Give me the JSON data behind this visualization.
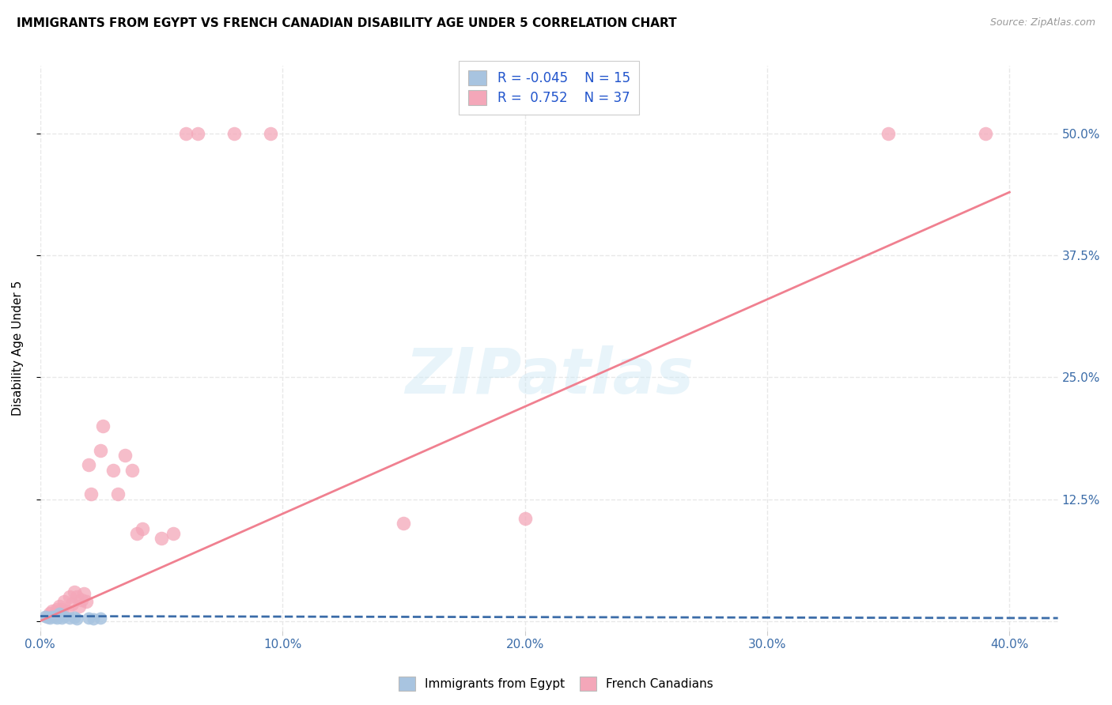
{
  "title": "IMMIGRANTS FROM EGYPT VS FRENCH CANADIAN DISABILITY AGE UNDER 5 CORRELATION CHART",
  "source": "Source: ZipAtlas.com",
  "ylabel": "Disability Age Under 5",
  "legend_egypt_R": "-0.045",
  "legend_egypt_N": "15",
  "legend_french_R": "0.752",
  "legend_french_N": "37",
  "egypt_color": "#a8c4e0",
  "french_color": "#f4a7b9",
  "egypt_line_color": "#3b6ca8",
  "french_line_color": "#f08090",
  "egypt_scatter": [
    [
      0.002,
      0.005
    ],
    [
      0.003,
      0.004
    ],
    [
      0.004,
      0.003
    ],
    [
      0.005,
      0.005
    ],
    [
      0.006,
      0.004
    ],
    [
      0.007,
      0.003
    ],
    [
      0.008,
      0.008
    ],
    [
      0.009,
      0.003
    ],
    [
      0.01,
      0.005
    ],
    [
      0.012,
      0.003
    ],
    [
      0.014,
      0.004
    ],
    [
      0.015,
      0.002
    ],
    [
      0.02,
      0.003
    ],
    [
      0.022,
      0.002
    ],
    [
      0.025,
      0.003
    ]
  ],
  "french_scatter": [
    [
      0.003,
      0.005
    ],
    [
      0.004,
      0.008
    ],
    [
      0.005,
      0.01
    ],
    [
      0.006,
      0.006
    ],
    [
      0.007,
      0.012
    ],
    [
      0.008,
      0.015
    ],
    [
      0.009,
      0.012
    ],
    [
      0.01,
      0.02
    ],
    [
      0.011,
      0.01
    ],
    [
      0.012,
      0.025
    ],
    [
      0.013,
      0.018
    ],
    [
      0.014,
      0.03
    ],
    [
      0.015,
      0.025
    ],
    [
      0.016,
      0.015
    ],
    [
      0.017,
      0.022
    ],
    [
      0.018,
      0.028
    ],
    [
      0.019,
      0.02
    ],
    [
      0.02,
      0.16
    ],
    [
      0.021,
      0.13
    ],
    [
      0.025,
      0.175
    ],
    [
      0.026,
      0.2
    ],
    [
      0.03,
      0.155
    ],
    [
      0.032,
      0.13
    ],
    [
      0.035,
      0.17
    ],
    [
      0.038,
      0.155
    ],
    [
      0.04,
      0.09
    ],
    [
      0.042,
      0.095
    ],
    [
      0.05,
      0.085
    ],
    [
      0.055,
      0.09
    ],
    [
      0.06,
      0.5
    ],
    [
      0.065,
      0.5
    ],
    [
      0.08,
      0.5
    ],
    [
      0.095,
      0.5
    ],
    [
      0.15,
      0.1
    ],
    [
      0.2,
      0.105
    ],
    [
      0.35,
      0.5
    ],
    [
      0.39,
      0.5
    ]
  ],
  "xlim": [
    0.0,
    0.42
  ],
  "ylim": [
    -0.01,
    0.57
  ],
  "xticks": [
    0.0,
    0.1,
    0.2,
    0.3,
    0.4
  ],
  "yticks": [
    0.0,
    0.125,
    0.25,
    0.375,
    0.5
  ],
  "xtick_labels": [
    "0.0%",
    "10.0%",
    "20.0%",
    "30.0%",
    "40.0%"
  ],
  "ytick_labels": [
    "",
    "12.5%",
    "25.0%",
    "37.5%",
    "50.0%"
  ],
  "grid_color": "#e8e8e8",
  "background_color": "#ffffff",
  "french_line_x0": 0.0,
  "french_line_y0": 0.0,
  "french_line_x1": 0.4,
  "french_line_y1": 0.44,
  "egypt_line_x0": 0.0,
  "egypt_line_y0": 0.005,
  "egypt_line_x1": 0.42,
  "egypt_line_y1": 0.003
}
